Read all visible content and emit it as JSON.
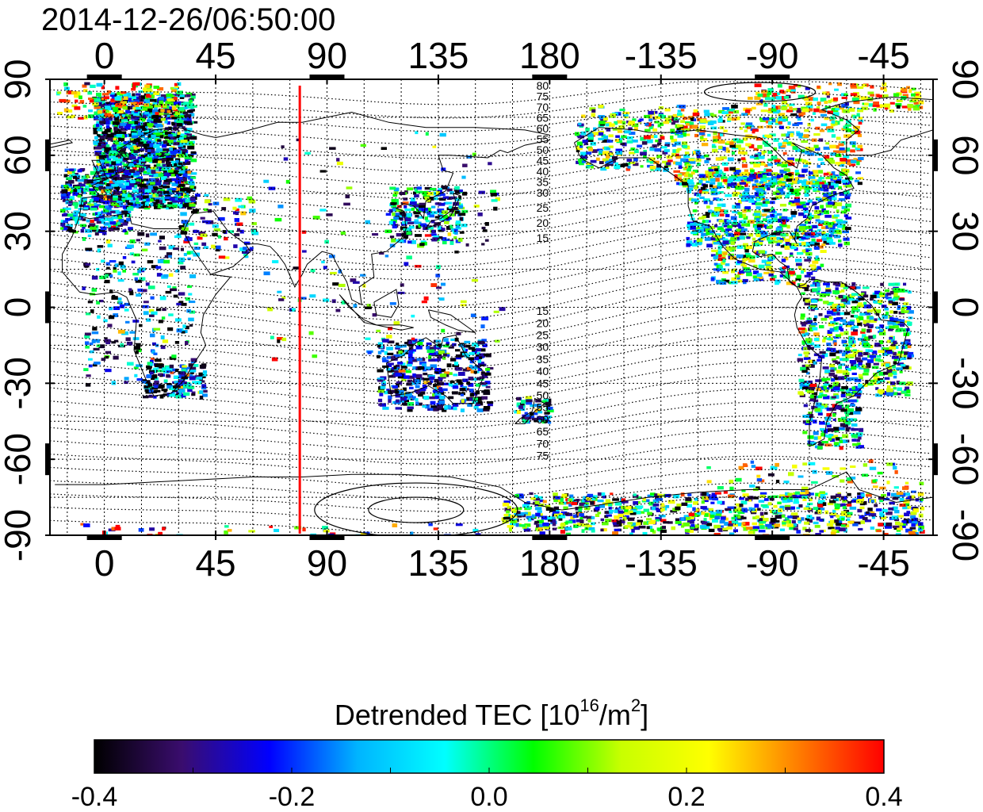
{
  "header": {
    "timestamp": "2014-12-26/06:50:00"
  },
  "map": {
    "projection": "equirectangular",
    "lon_range": [
      -22,
      335
    ],
    "lat_range": [
      -90,
      90
    ],
    "lon_ticks": [
      {
        "value": 0,
        "label": "0"
      },
      {
        "value": 45,
        "label": "45"
      },
      {
        "value": 90,
        "label": "90"
      },
      {
        "value": 135,
        "label": "135"
      },
      {
        "value": 180,
        "label": "180"
      },
      {
        "value": 225,
        "label": "-135"
      },
      {
        "value": 270,
        "label": "-90"
      },
      {
        "value": 315,
        "label": "-45"
      }
    ],
    "lat_ticks": [
      {
        "value": 90,
        "label": "90"
      },
      {
        "value": 60,
        "label": "60"
      },
      {
        "value": 30,
        "label": "30"
      },
      {
        "value": 0,
        "label": "0"
      },
      {
        "value": -30,
        "label": "-30"
      },
      {
        "value": -60,
        "label": "-60"
      },
      {
        "value": -90,
        "label": "-90"
      }
    ],
    "grid": true,
    "marker_line": {
      "lon": 79,
      "color": "#ff0000"
    },
    "magnetic_latitude_labels_north": [
      "80",
      "75",
      "70",
      "65",
      "60",
      "55",
      "50",
      "45",
      "40",
      "35",
      "30",
      "25",
      "20",
      "15"
    ],
    "magnetic_latitude_labels_south": [
      "15",
      "20",
      "25",
      "30",
      "35",
      "40",
      "45",
      "50",
      "55",
      "60",
      "65",
      "70",
      "75"
    ]
  },
  "colorbar": {
    "title_text": "Detrended TEC  [10",
    "title_exp": "16",
    "title_unit": "/m",
    "title_unit_exp": "2",
    "title_close": "]",
    "min": -0.4,
    "max": 0.4,
    "tick_labels": [
      "-0.4",
      "-0.2",
      "0.0",
      "0.2",
      "0.4"
    ],
    "colors": [
      "#000000",
      "#3a0d6e",
      "#0000ff",
      "#00b4ff",
      "#00ffff",
      "#00ff00",
      "#c8ff00",
      "#ffff00",
      "#ff8000",
      "#ff0000"
    ]
  }
}
